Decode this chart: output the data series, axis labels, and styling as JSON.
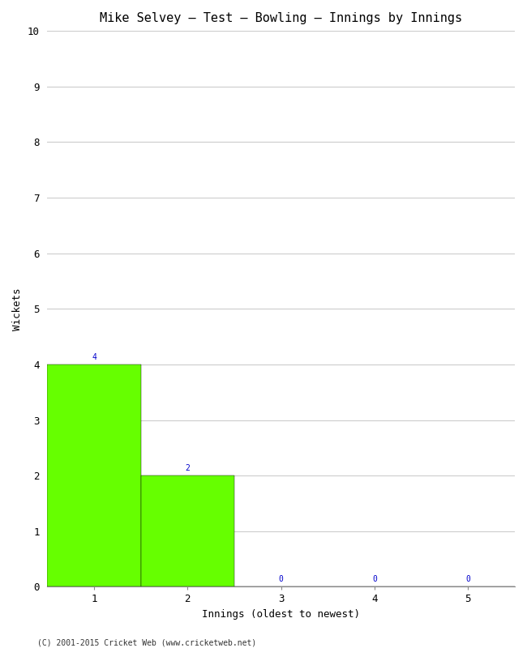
{
  "title": "Mike Selvey – Test – Bowling – Innings by Innings",
  "xlabel": "Innings (oldest to newest)",
  "ylabel": "Wickets",
  "categories": [
    1,
    2,
    3,
    4,
    5
  ],
  "values": [
    4,
    2,
    0,
    0,
    0
  ],
  "bar_color": "#66ff00",
  "ylim": [
    0,
    10
  ],
  "yticks": [
    0,
    1,
    2,
    3,
    4,
    5,
    6,
    7,
    8,
    9,
    10
  ],
  "xticks": [
    1,
    2,
    3,
    4,
    5
  ],
  "label_color": "#0000cc",
  "label_fontsize": 7,
  "axis_fontsize": 9,
  "title_fontsize": 11,
  "bg_color": "#ffffff",
  "grid_color": "#cccccc",
  "footer": "(C) 2001-2015 Cricket Web (www.cricketweb.net)"
}
